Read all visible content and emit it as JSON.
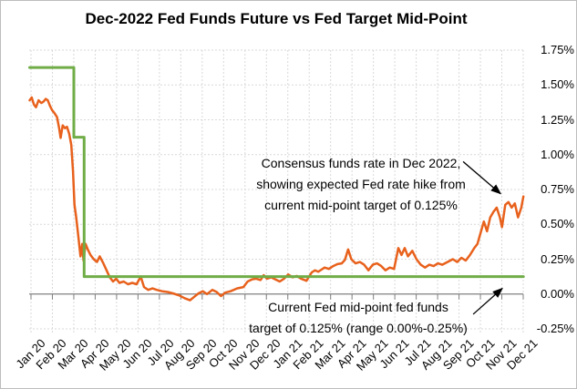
{
  "chart_data": {
    "type": "line",
    "title": "Dec-2022 Fed Funds Future vs Fed Target Mid-Point",
    "x_axis": {
      "labels": [
        "Jan 20",
        "Feb 20",
        "Mar 20",
        "Apr 20",
        "May 20",
        "Jun 20",
        "Jul 20",
        "Aug 20",
        "Sep 20",
        "Oct 20",
        "Nov 20",
        "Dec 20",
        "Jan 21",
        "Feb 21",
        "Mar 21",
        "Apr 21",
        "May 21",
        "Jun 21",
        "Jul 21",
        "Aug 21",
        "Sep 21",
        "Oct 21",
        "Nov 21",
        "Dec 21"
      ],
      "unit": "months since Jan 2020",
      "range_months": [
        0,
        23.1
      ]
    },
    "y_axis": {
      "tick_labels": [
        "1.75%",
        "1.50%",
        "1.25%",
        "1.00%",
        "0.75%",
        "0.50%",
        "0.25%",
        "0.00%",
        "-0.25%"
      ],
      "min": -0.25,
      "max": 1.75,
      "step": 0.25,
      "side": "right",
      "zero_line": true
    },
    "grid": {
      "horizontal": true,
      "vertical": true,
      "style": "dashed",
      "color": "#d9d9d9",
      "axis_color": "#808080"
    },
    "legend": "none",
    "series": [
      {
        "name": "Dec-2022 fed funds future (consensus rate)",
        "color": "#e8611c",
        "width": 2.5,
        "points": [
          [
            0.0,
            1.39
          ],
          [
            0.1,
            1.41
          ],
          [
            0.2,
            1.36
          ],
          [
            0.3,
            1.34
          ],
          [
            0.42,
            1.39
          ],
          [
            0.55,
            1.37
          ],
          [
            0.65,
            1.38
          ],
          [
            0.75,
            1.4
          ],
          [
            0.85,
            1.39
          ],
          [
            0.95,
            1.35
          ],
          [
            1.05,
            1.32
          ],
          [
            1.15,
            1.3
          ],
          [
            1.28,
            1.27
          ],
          [
            1.38,
            1.19
          ],
          [
            1.45,
            1.12
          ],
          [
            1.55,
            1.21
          ],
          [
            1.65,
            1.19
          ],
          [
            1.75,
            1.2
          ],
          [
            1.85,
            1.15
          ],
          [
            1.95,
            1.07
          ],
          [
            2.03,
            0.88
          ],
          [
            2.1,
            0.64
          ],
          [
            2.18,
            0.55
          ],
          [
            2.28,
            0.41
          ],
          [
            2.38,
            0.27
          ],
          [
            2.46,
            0.36
          ],
          [
            2.52,
            0.24
          ],
          [
            2.62,
            0.36
          ],
          [
            2.72,
            0.32
          ],
          [
            2.85,
            0.28
          ],
          [
            3.0,
            0.25
          ],
          [
            3.15,
            0.23
          ],
          [
            3.28,
            0.27
          ],
          [
            3.45,
            0.22
          ],
          [
            3.6,
            0.17
          ],
          [
            3.75,
            0.12
          ],
          [
            3.9,
            0.09
          ],
          [
            4.05,
            0.11
          ],
          [
            4.2,
            0.08
          ],
          [
            4.4,
            0.09
          ],
          [
            4.6,
            0.07
          ],
          [
            4.8,
            0.08
          ],
          [
            5.0,
            0.07
          ],
          [
            5.2,
            0.125
          ],
          [
            5.35,
            0.05
          ],
          [
            5.55,
            0.03
          ],
          [
            5.75,
            0.04
          ],
          [
            5.95,
            0.03
          ],
          [
            6.2,
            0.02
          ],
          [
            6.45,
            0.015
          ],
          [
            6.7,
            0.005
          ],
          [
            7.0,
            -0.01
          ],
          [
            7.25,
            -0.03
          ],
          [
            7.5,
            -0.045
          ],
          [
            7.7,
            -0.02
          ],
          [
            7.9,
            0.005
          ],
          [
            8.1,
            0.02
          ],
          [
            8.3,
            0.0
          ],
          [
            8.55,
            0.03
          ],
          [
            8.75,
            0.015
          ],
          [
            8.95,
            -0.015
          ],
          [
            9.15,
            0.01
          ],
          [
            9.4,
            0.02
          ],
          [
            9.7,
            0.04
          ],
          [
            10.0,
            0.05
          ],
          [
            10.2,
            0.09
          ],
          [
            10.4,
            0.105
          ],
          [
            10.6,
            0.11
          ],
          [
            10.8,
            0.1
          ],
          [
            10.95,
            0.135
          ],
          [
            11.1,
            0.11
          ],
          [
            11.3,
            0.12
          ],
          [
            11.5,
            0.105
          ],
          [
            11.7,
            0.09
          ],
          [
            11.9,
            0.11
          ],
          [
            12.1,
            0.14
          ],
          [
            12.3,
            0.12
          ],
          [
            12.5,
            0.13
          ],
          [
            12.7,
            0.11
          ],
          [
            12.95,
            0.095
          ],
          [
            13.2,
            0.155
          ],
          [
            13.35,
            0.17
          ],
          [
            13.5,
            0.16
          ],
          [
            13.65,
            0.175
          ],
          [
            13.8,
            0.19
          ],
          [
            14.0,
            0.18
          ],
          [
            14.2,
            0.2
          ],
          [
            14.4,
            0.215
          ],
          [
            14.6,
            0.22
          ],
          [
            14.75,
            0.245
          ],
          [
            14.9,
            0.32
          ],
          [
            15.05,
            0.25
          ],
          [
            15.25,
            0.22
          ],
          [
            15.45,
            0.23
          ],
          [
            15.65,
            0.21
          ],
          [
            15.85,
            0.17
          ],
          [
            16.05,
            0.21
          ],
          [
            16.25,
            0.22
          ],
          [
            16.45,
            0.2
          ],
          [
            16.65,
            0.17
          ],
          [
            16.85,
            0.19
          ],
          [
            17.05,
            0.18
          ],
          [
            17.25,
            0.33
          ],
          [
            17.4,
            0.28
          ],
          [
            17.55,
            0.33
          ],
          [
            17.7,
            0.27
          ],
          [
            17.9,
            0.31
          ],
          [
            18.1,
            0.25
          ],
          [
            18.3,
            0.21
          ],
          [
            18.5,
            0.19
          ],
          [
            18.7,
            0.21
          ],
          [
            18.9,
            0.2
          ],
          [
            19.1,
            0.22
          ],
          [
            19.3,
            0.21
          ],
          [
            19.55,
            0.23
          ],
          [
            19.8,
            0.25
          ],
          [
            20.0,
            0.23
          ],
          [
            20.2,
            0.26
          ],
          [
            20.4,
            0.24
          ],
          [
            20.6,
            0.28
          ],
          [
            20.8,
            0.33
          ],
          [
            20.95,
            0.36
          ],
          [
            21.1,
            0.44
          ],
          [
            21.25,
            0.52
          ],
          [
            21.4,
            0.45
          ],
          [
            21.55,
            0.55
          ],
          [
            21.7,
            0.59
          ],
          [
            21.85,
            0.62
          ],
          [
            22.0,
            0.55
          ],
          [
            22.1,
            0.48
          ],
          [
            22.25,
            0.64
          ],
          [
            22.4,
            0.66
          ],
          [
            22.55,
            0.62
          ],
          [
            22.7,
            0.65
          ],
          [
            22.85,
            0.55
          ],
          [
            23.0,
            0.62
          ],
          [
            23.1,
            0.7
          ]
        ]
      },
      {
        "name": "Fed target mid-point",
        "color": "#70ad47",
        "width": 3,
        "points": [
          [
            0.0,
            1.625
          ],
          [
            2.07,
            1.625
          ],
          [
            2.07,
            1.125
          ],
          [
            2.55,
            1.125
          ],
          [
            2.55,
            0.125
          ],
          [
            23.1,
            0.125
          ]
        ]
      }
    ],
    "annotations": [
      {
        "id": "consensus",
        "lines": [
          "Consensus funds rate in Dec 2022,",
          "showing expected Fed rate hike from",
          "current mid-point target of 0.125%"
        ],
        "arrow": {
          "from": [
            20.28,
            0.95
          ],
          "to": [
            22.03,
            0.72
          ]
        }
      },
      {
        "id": "target",
        "lines": [
          "Current Fed mid-point fed funds",
          "target of 0.125% (range 0.00%-0.25%)"
        ],
        "arrow": {
          "from": [
            20.75,
            -0.145
          ],
          "to": [
            22.11,
            0.04
          ]
        }
      }
    ],
    "colors": {
      "future_line": "#e8611c",
      "target_line": "#70ad47",
      "gridline": "#d9d9d9",
      "zero_axis": "#808080",
      "text": "#000000"
    }
  }
}
